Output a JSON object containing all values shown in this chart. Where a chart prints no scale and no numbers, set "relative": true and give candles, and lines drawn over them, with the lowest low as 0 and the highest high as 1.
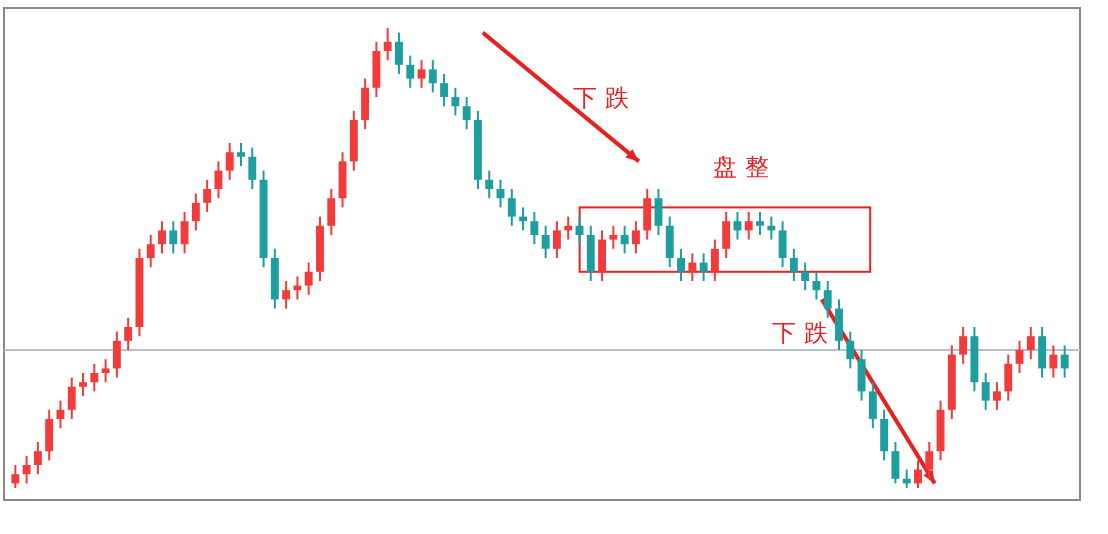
{
  "chart_data": {
    "type": "candlestick",
    "relative": true,
    "grid": false,
    "categories": [
      null,
      null,
      null,
      null,
      null,
      null,
      null,
      null,
      null,
      null,
      null,
      null,
      null,
      null,
      null,
      null,
      null,
      null,
      null,
      null,
      null,
      null,
      null,
      null,
      null,
      null,
      null,
      null,
      null,
      null,
      null,
      null,
      null,
      null,
      null,
      null,
      null,
      null,
      null,
      null,
      null,
      null,
      null,
      null,
      null,
      null,
      null,
      null,
      null,
      null,
      null,
      null,
      null,
      null,
      null,
      null,
      null,
      null,
      null,
      null,
      null,
      null,
      null,
      null,
      null,
      null,
      null,
      null,
      null,
      null,
      null,
      null,
      null,
      null,
      null,
      null,
      null,
      null,
      null,
      null,
      null,
      null,
      null,
      null,
      null,
      null,
      null,
      null,
      null,
      null,
      null,
      null,
      null,
      null
    ],
    "ohlc": [
      [
        0.01,
        0.05,
        0,
        0.03
      ],
      [
        0.03,
        0.07,
        0.01,
        0.05
      ],
      [
        0.05,
        0.1,
        0.03,
        0.08
      ],
      [
        0.08,
        0.17,
        0.06,
        0.15
      ],
      [
        0.15,
        0.19,
        0.13,
        0.17
      ],
      [
        0.17,
        0.24,
        0.15,
        0.22
      ],
      [
        0.22,
        0.25,
        0.2,
        0.23
      ],
      [
        0.23,
        0.27,
        0.21,
        0.25
      ],
      [
        0.25,
        0.28,
        0.23,
        0.26
      ],
      [
        0.26,
        0.34,
        0.24,
        0.32
      ],
      [
        0.32,
        0.37,
        0.3,
        0.35
      ],
      [
        0.35,
        0.52,
        0.33,
        0.5
      ],
      [
        0.5,
        0.55,
        0.48,
        0.53
      ],
      [
        0.53,
        0.58,
        0.51,
        0.56
      ],
      [
        0.56,
        0.58,
        0.51,
        0.53
      ],
      [
        0.53,
        0.6,
        0.51,
        0.58
      ],
      [
        0.58,
        0.64,
        0.56,
        0.62
      ],
      [
        0.62,
        0.67,
        0.6,
        0.65
      ],
      [
        0.65,
        0.71,
        0.63,
        0.69
      ],
      [
        0.69,
        0.75,
        0.67,
        0.73
      ],
      [
        0.73,
        0.75,
        0.7,
        0.72
      ],
      [
        0.72,
        0.74,
        0.65,
        0.67
      ],
      [
        0.67,
        0.69,
        0.48,
        0.5
      ],
      [
        0.5,
        0.52,
        0.39,
        0.41
      ],
      [
        0.41,
        0.45,
        0.39,
        0.43
      ],
      [
        0.43,
        0.46,
        0.41,
        0.44
      ],
      [
        0.44,
        0.49,
        0.42,
        0.47
      ],
      [
        0.47,
        0.59,
        0.45,
        0.57
      ],
      [
        0.57,
        0.65,
        0.55,
        0.63
      ],
      [
        0.63,
        0.73,
        0.61,
        0.71
      ],
      [
        0.71,
        0.82,
        0.69,
        0.8
      ],
      [
        0.8,
        0.89,
        0.78,
        0.87
      ],
      [
        0.87,
        0.97,
        0.85,
        0.95
      ],
      [
        0.95,
        1,
        0.93,
        0.97
      ],
      [
        0.97,
        0.99,
        0.9,
        0.92
      ],
      [
        0.92,
        0.94,
        0.87,
        0.89
      ],
      [
        0.89,
        0.93,
        0.87,
        0.91
      ],
      [
        0.91,
        0.93,
        0.86,
        0.88
      ],
      [
        0.88,
        0.9,
        0.83,
        0.85
      ],
      [
        0.85,
        0.87,
        0.81,
        0.83
      ],
      [
        0.83,
        0.85,
        0.78,
        0.8
      ],
      [
        0.8,
        0.82,
        0.65,
        0.67
      ],
      [
        0.67,
        0.69,
        0.63,
        0.65
      ],
      [
        0.65,
        0.67,
        0.61,
        0.63
      ],
      [
        0.63,
        0.65,
        0.57,
        0.59
      ],
      [
        0.59,
        0.61,
        0.56,
        0.58
      ],
      [
        0.58,
        0.6,
        0.53,
        0.55
      ],
      [
        0.55,
        0.57,
        0.5,
        0.52
      ],
      [
        0.52,
        0.58,
        0.5,
        0.56
      ],
      [
        0.56,
        0.59,
        0.54,
        0.57
      ],
      [
        0.57,
        0.59,
        0.53,
        0.55
      ],
      [
        0.55,
        0.57,
        0.45,
        0.47
      ],
      [
        0.47,
        0.56,
        0.45,
        0.54
      ],
      [
        0.54,
        0.57,
        0.52,
        0.55
      ],
      [
        0.55,
        0.57,
        0.51,
        0.53
      ],
      [
        0.53,
        0.58,
        0.51,
        0.56
      ],
      [
        0.56,
        0.65,
        0.54,
        0.63
      ],
      [
        0.63,
        0.65,
        0.55,
        0.57
      ],
      [
        0.57,
        0.59,
        0.48,
        0.5
      ],
      [
        0.5,
        0.52,
        0.45,
        0.47
      ],
      [
        0.47,
        0.51,
        0.45,
        0.49
      ],
      [
        0.49,
        0.51,
        0.45,
        0.47
      ],
      [
        0.47,
        0.54,
        0.45,
        0.52
      ],
      [
        0.52,
        0.6,
        0.5,
        0.58
      ],
      [
        0.58,
        0.6,
        0.54,
        0.56
      ],
      [
        0.56,
        0.6,
        0.54,
        0.58
      ],
      [
        0.58,
        0.6,
        0.55,
        0.57
      ],
      [
        0.57,
        0.59,
        0.54,
        0.56
      ],
      [
        0.56,
        0.58,
        0.48,
        0.5
      ],
      [
        0.5,
        0.52,
        0.45,
        0.47
      ],
      [
        0.47,
        0.49,
        0.43,
        0.45
      ],
      [
        0.45,
        0.47,
        0.41,
        0.43
      ],
      [
        0.43,
        0.45,
        0.37,
        0.39
      ],
      [
        0.39,
        0.41,
        0.3,
        0.32
      ],
      [
        0.32,
        0.34,
        0.26,
        0.28
      ],
      [
        0.28,
        0.3,
        0.19,
        0.21
      ],
      [
        0.21,
        0.23,
        0.13,
        0.15
      ],
      [
        0.15,
        0.17,
        0.06,
        0.08
      ],
      [
        0.08,
        0.1,
        0.01,
        0.02
      ],
      [
        0.02,
        0.04,
        0,
        0.01
      ],
      [
        0.01,
        0.06,
        0,
        0.04
      ],
      [
        0.04,
        0.1,
        0.02,
        0.08
      ],
      [
        0.08,
        0.19,
        0.06,
        0.17
      ],
      [
        0.17,
        0.31,
        0.15,
        0.29
      ],
      [
        0.29,
        0.35,
        0.27,
        0.33
      ],
      [
        0.33,
        0.35,
        0.21,
        0.23
      ],
      [
        0.23,
        0.25,
        0.17,
        0.19
      ],
      [
        0.19,
        0.23,
        0.17,
        0.21
      ],
      [
        0.21,
        0.29,
        0.19,
        0.27
      ],
      [
        0.27,
        0.32,
        0.25,
        0.3
      ],
      [
        0.3,
        0.35,
        0.28,
        0.33
      ],
      [
        0.33,
        0.35,
        0.24,
        0.26
      ],
      [
        0.26,
        0.31,
        0.24,
        0.29
      ],
      [
        0.29,
        0.31,
        0.24,
        0.26
      ]
    ],
    "ref_lines": [
      {
        "axis": "y",
        "value": 0.3,
        "color": "#b8c2cc"
      }
    ],
    "annotations": [
      "下 跌",
      "盘 整",
      "下 跌"
    ]
  }
}
